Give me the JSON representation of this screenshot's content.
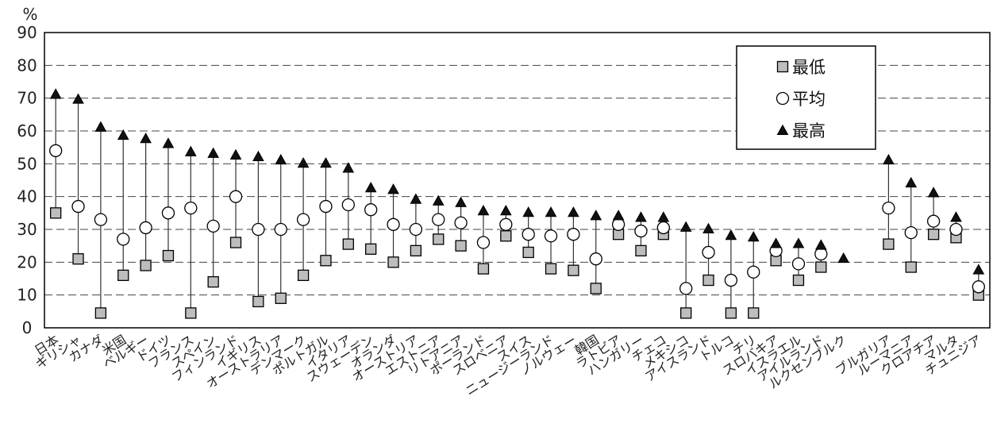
{
  "chart_data": {
    "type": "scatter",
    "ylabel": "%",
    "ylim": [
      0,
      90
    ],
    "yticks": [
      0,
      10,
      20,
      30,
      40,
      50,
      60,
      70,
      80,
      90
    ],
    "grid": "horizontal dashed",
    "legend_position": "top-right",
    "categories": [
      "日本",
      "ギリシャ",
      "カナダ",
      "米国",
      "ベルギー",
      "ドイツ",
      "フランス",
      "スペイン",
      "フィンランド",
      "イギリス",
      "オーストラリア",
      "デンマーク",
      "ポルトガル",
      "イタリア",
      "スウェーデン",
      "オランダ",
      "オーストリア",
      "エストニア",
      "リトアニア",
      "ポーランド",
      "スロベニア",
      "スイス",
      "ニュージーランド",
      "ノルウェー",
      "韓国",
      "ラトビア",
      "ハンガリー",
      "チェコ",
      "メキシコ",
      "アイスランド",
      "トルコ",
      "チリ",
      "スロバキア",
      "イスラエル",
      "アイルランド",
      "ルクセンブルク",
      "",
      "ブルガリア",
      "ルーマニア",
      "クロアチア",
      "マルタ",
      "チュニジア"
    ],
    "series": [
      {
        "name": "最低",
        "marker": "square",
        "color": "#bdbdbd",
        "values": [
          35,
          21,
          4.5,
          16,
          19,
          22,
          4.5,
          14,
          26,
          8,
          9,
          16,
          20.5,
          25.5,
          24,
          20,
          23.5,
          27,
          25,
          18,
          28,
          23,
          18,
          17.5,
          12,
          28.5,
          23.5,
          28.5,
          4.5,
          14.5,
          4.5,
          4.5,
          20.5,
          14.5,
          18.5,
          null,
          null,
          25.5,
          18.5,
          28.5,
          27.5,
          10
        ]
      },
      {
        "name": "平均",
        "marker": "circle",
        "color": "#ffffff",
        "values": [
          54,
          37,
          33,
          27,
          30.5,
          35,
          36.5,
          31,
          40,
          30,
          30,
          33,
          37,
          37.5,
          36,
          31.5,
          30,
          33,
          32,
          26,
          31.5,
          28.5,
          28,
          28.5,
          21,
          31.5,
          29.5,
          30.5,
          12,
          23,
          14.5,
          17,
          23.5,
          19.5,
          22.5,
          null,
          null,
          36.5,
          29,
          32.5,
          30,
          12.5
        ]
      },
      {
        "name": "最高",
        "marker": "triangle",
        "color": "#111111",
        "values": [
          71,
          69.5,
          61,
          58.5,
          57.5,
          56,
          53.5,
          53,
          52.5,
          52,
          51,
          50,
          50,
          48.5,
          42.5,
          42,
          39,
          38.5,
          38,
          35.5,
          35.5,
          35,
          35,
          35,
          34,
          34,
          33.5,
          33.5,
          30.5,
          30,
          28,
          27.5,
          25.5,
          25.5,
          25,
          21,
          null,
          51,
          44,
          41,
          33.5,
          17.5
        ]
      }
    ]
  }
}
